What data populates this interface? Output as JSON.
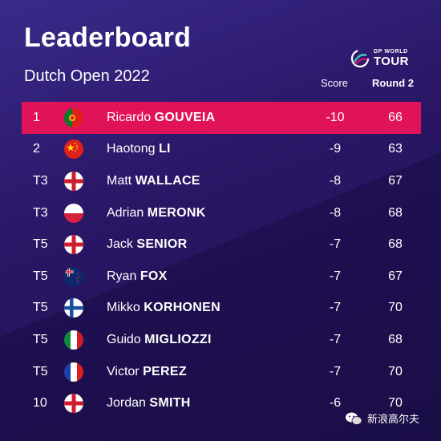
{
  "header": {
    "title": "Leaderboard",
    "subtitle": "Dutch Open 2022",
    "logo_top": "DP WORLD",
    "logo_bottom": "TOUR"
  },
  "columns": {
    "score": "Score",
    "round": "Round 2"
  },
  "colors": {
    "background": "#26114f",
    "highlight": "#e0135a"
  },
  "rows": [
    {
      "pos": "1",
      "flag": "portugal",
      "first": "Ricardo",
      "last": "GOUVEIA",
      "score": "-10",
      "round": "66",
      "highlight": true
    },
    {
      "pos": "2",
      "flag": "china",
      "first": "Haotong",
      "last": "LI",
      "score": "-9",
      "round": "63"
    },
    {
      "pos": "T3",
      "flag": "england",
      "first": "Matt",
      "last": "WALLACE",
      "score": "-8",
      "round": "67"
    },
    {
      "pos": "T3",
      "flag": "poland",
      "first": "Adrian",
      "last": "MERONK",
      "score": "-8",
      "round": "68"
    },
    {
      "pos": "T5",
      "flag": "england",
      "first": "Jack",
      "last": "SENIOR",
      "score": "-7",
      "round": "68"
    },
    {
      "pos": "T5",
      "flag": "new-zealand",
      "first": "Ryan",
      "last": "FOX",
      "score": "-7",
      "round": "67"
    },
    {
      "pos": "T5",
      "flag": "finland",
      "first": "Mikko",
      "last": "KORHONEN",
      "score": "-7",
      "round": "70"
    },
    {
      "pos": "T5",
      "flag": "italy",
      "first": "Guido",
      "last": "MIGLIOZZI",
      "score": "-7",
      "round": "68"
    },
    {
      "pos": "T5",
      "flag": "france",
      "first": "Victor",
      "last": "PEREZ",
      "score": "-7",
      "round": "70"
    },
    {
      "pos": "10",
      "flag": "england",
      "first": "Jordan",
      "last": "SMITH",
      "score": "-6",
      "round": "70"
    }
  ],
  "watermark": {
    "text": "新浪高尔夫",
    "icon": "wechat-icon"
  }
}
